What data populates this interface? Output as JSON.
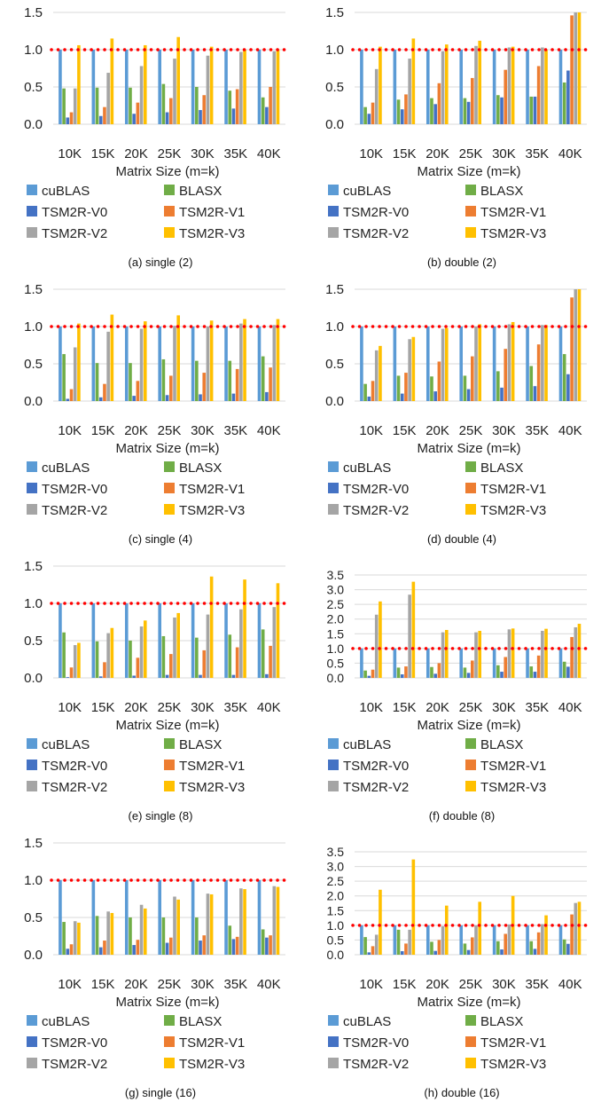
{
  "legend": [
    "cuBLAS",
    "BLASX",
    "TSM2R-V0",
    "TSM2R-V1",
    "TSM2R-V2",
    "TSM2R-V3"
  ],
  "colors": {
    "cuBLAS": "#5B9BD5",
    "BLASX": "#70AD47",
    "TSM2R-V0": "#4472C4",
    "TSM2R-V1": "#ED7D31",
    "TSM2R-V2": "#A5A5A5",
    "TSM2R-V3": "#FFC000",
    "reference_line": "#FF0000"
  },
  "chart_data": [
    {
      "type": "bar",
      "caption": "(a) single (2)",
      "xlabel": "Matrix Size (m=k)",
      "categories": [
        "10K",
        "15K",
        "20K",
        "25K",
        "30K",
        "35K",
        "40K"
      ],
      "ylim": [
        0,
        1.5
      ],
      "yticks": [
        "0.0",
        "0.5",
        "1.0",
        "1.5"
      ],
      "reference_line": 1.0,
      "series": [
        {
          "name": "cuBLAS",
          "values": [
            1,
            1,
            1,
            1,
            1,
            1,
            1
          ]
        },
        {
          "name": "BLASX",
          "values": [
            0.48,
            0.49,
            0.49,
            0.54,
            0.5,
            0.45,
            0.36
          ]
        },
        {
          "name": "TSM2R-V0",
          "values": [
            0.09,
            0.11,
            0.14,
            0.16,
            0.19,
            0.21,
            0.23
          ]
        },
        {
          "name": "TSM2R-V1",
          "values": [
            0.16,
            0.23,
            0.29,
            0.35,
            0.39,
            0.47,
            0.5
          ]
        },
        {
          "name": "TSM2R-V2",
          "values": [
            0.48,
            0.69,
            0.78,
            0.88,
            0.92,
            0.97,
            0.98
          ]
        },
        {
          "name": "TSM2R-V3",
          "values": [
            1.06,
            1.15,
            1.06,
            1.17,
            1.04,
            1.0,
            1.0
          ]
        }
      ]
    },
    {
      "type": "bar",
      "caption": "(b) double (2)",
      "xlabel": "Matrix Size (m=k)",
      "categories": [
        "10K",
        "15K",
        "20K",
        "25K",
        "30K",
        "35K",
        "40K"
      ],
      "ylim": [
        0,
        1.5
      ],
      "yticks": [
        "0.0",
        "0.5",
        "1.0",
        "1.5"
      ],
      "reference_line": 1.0,
      "series": [
        {
          "name": "cuBLAS",
          "values": [
            1,
            1,
            1,
            1,
            1,
            1,
            1
          ]
        },
        {
          "name": "BLASX",
          "values": [
            0.23,
            0.33,
            0.35,
            0.35,
            0.39,
            0.37,
            0.56
          ]
        },
        {
          "name": "TSM2R-V0",
          "values": [
            0.14,
            0.2,
            0.27,
            0.3,
            0.36,
            0.37,
            0.72
          ]
        },
        {
          "name": "TSM2R-V1",
          "values": [
            0.29,
            0.4,
            0.55,
            0.62,
            0.73,
            0.78,
            1.46
          ]
        },
        {
          "name": "TSM2R-V2",
          "values": [
            0.74,
            0.88,
            0.98,
            1.05,
            1.03,
            1.03,
            1.5
          ]
        },
        {
          "name": "TSM2R-V3",
          "values": [
            1.04,
            1.15,
            1.07,
            1.12,
            1.04,
            1.0,
            1.5
          ]
        }
      ]
    },
    {
      "type": "bar",
      "caption": "(c) single (4)",
      "xlabel": "Matrix Size (m=k)",
      "categories": [
        "10K",
        "15K",
        "20K",
        "25K",
        "30K",
        "35K",
        "40K"
      ],
      "ylim": [
        0,
        1.5
      ],
      "yticks": [
        "0.0",
        "0.5",
        "1.0",
        "1.5"
      ],
      "reference_line": 1.0,
      "series": [
        {
          "name": "cuBLAS",
          "values": [
            1,
            1,
            1,
            1,
            1,
            1,
            1
          ]
        },
        {
          "name": "BLASX",
          "values": [
            0.63,
            0.51,
            0.51,
            0.56,
            0.54,
            0.54,
            0.6
          ]
        },
        {
          "name": "TSM2R-V0",
          "values": [
            0.03,
            0.05,
            0.07,
            0.08,
            0.09,
            0.1,
            0.12
          ]
        },
        {
          "name": "TSM2R-V1",
          "values": [
            0.16,
            0.23,
            0.27,
            0.34,
            0.38,
            0.43,
            0.45
          ]
        },
        {
          "name": "TSM2R-V2",
          "values": [
            0.72,
            0.93,
            0.97,
            1.01,
            1.0,
            1.04,
            1.02
          ]
        },
        {
          "name": "TSM2R-V3",
          "values": [
            1.04,
            1.16,
            1.07,
            1.15,
            1.08,
            1.1,
            1.1
          ]
        }
      ]
    },
    {
      "type": "bar",
      "caption": "(d) double (4)",
      "xlabel": "Matrix Size (m=k)",
      "categories": [
        "10K",
        "15K",
        "20K",
        "25K",
        "30K",
        "35K",
        "40K"
      ],
      "ylim": [
        0,
        1.5
      ],
      "yticks": [
        "0.0",
        "0.5",
        "1.0",
        "1.5"
      ],
      "reference_line": 1.0,
      "series": [
        {
          "name": "cuBLAS",
          "values": [
            1,
            1,
            1,
            1,
            1,
            1,
            1
          ]
        },
        {
          "name": "BLASX",
          "values": [
            0.23,
            0.34,
            0.33,
            0.34,
            0.4,
            0.47,
            0.63
          ]
        },
        {
          "name": "TSM2R-V0",
          "values": [
            0.06,
            0.1,
            0.13,
            0.16,
            0.18,
            0.2,
            0.36
          ]
        },
        {
          "name": "TSM2R-V1",
          "values": [
            0.27,
            0.38,
            0.53,
            0.6,
            0.7,
            0.76,
            1.39
          ]
        },
        {
          "name": "TSM2R-V2",
          "values": [
            0.68,
            0.83,
            0.97,
            1.0,
            1.03,
            1.02,
            1.5
          ]
        },
        {
          "name": "TSM2R-V3",
          "values": [
            0.74,
            0.86,
            0.98,
            1.03,
            1.06,
            1.02,
            1.5
          ]
        }
      ]
    },
    {
      "type": "bar",
      "caption": "(e) single (8)",
      "xlabel": "Matrix Size (m=k)",
      "categories": [
        "10K",
        "15K",
        "20K",
        "25K",
        "30K",
        "35K",
        "40K"
      ],
      "ylim": [
        0,
        1.5
      ],
      "yticks": [
        "0.0",
        "0.5",
        "1.0",
        "1.5"
      ],
      "reference_line": 1.0,
      "series": [
        {
          "name": "cuBLAS",
          "values": [
            1,
            1,
            1,
            1,
            1,
            1,
            1
          ]
        },
        {
          "name": "BLASX",
          "values": [
            0.61,
            0.49,
            0.5,
            0.56,
            0.54,
            0.58,
            0.65
          ]
        },
        {
          "name": "TSM2R-V0",
          "values": [
            0.01,
            0.02,
            0.03,
            0.04,
            0.04,
            0.04,
            0.05
          ]
        },
        {
          "name": "TSM2R-V1",
          "values": [
            0.14,
            0.21,
            0.27,
            0.32,
            0.37,
            0.41,
            0.43
          ]
        },
        {
          "name": "TSM2R-V2",
          "values": [
            0.44,
            0.6,
            0.69,
            0.81,
            0.85,
            0.92,
            0.95
          ]
        },
        {
          "name": "TSM2R-V3",
          "values": [
            0.47,
            0.67,
            0.77,
            0.87,
            1.36,
            1.32,
            1.27
          ]
        }
      ]
    },
    {
      "type": "bar",
      "caption": "(f) double (8)",
      "xlabel": "Matrix Size (m=k)",
      "categories": [
        "10K",
        "15K",
        "20K",
        "25K",
        "30K",
        "35K",
        "40K"
      ],
      "ylim": [
        0,
        3.5
      ],
      "yticks": [
        "0.0",
        "0.5",
        "1.0",
        "1.5",
        "2.0",
        "2.5",
        "3.0",
        "3.5"
      ],
      "reference_line": 1.0,
      "series": [
        {
          "name": "cuBLAS",
          "values": [
            1,
            1,
            1,
            1,
            1,
            1,
            1
          ]
        },
        {
          "name": "BLASX",
          "values": [
            0.25,
            0.35,
            0.37,
            0.35,
            0.43,
            0.39,
            0.55
          ]
        },
        {
          "name": "TSM2R-V0",
          "values": [
            0.07,
            0.12,
            0.14,
            0.17,
            0.21,
            0.21,
            0.38
          ]
        },
        {
          "name": "TSM2R-V1",
          "values": [
            0.28,
            0.39,
            0.5,
            0.59,
            0.71,
            0.76,
            1.39
          ]
        },
        {
          "name": "TSM2R-V2",
          "values": [
            2.15,
            2.83,
            1.55,
            1.55,
            1.65,
            1.6,
            1.72
          ]
        },
        {
          "name": "TSM2R-V3",
          "values": [
            2.6,
            3.27,
            1.63,
            1.6,
            1.68,
            1.67,
            1.84
          ]
        }
      ]
    },
    {
      "type": "bar",
      "caption": "(g) single (16)",
      "xlabel": "Matrix Size (m=k)",
      "categories": [
        "10K",
        "15K",
        "20K",
        "25K",
        "30K",
        "35K",
        "40K"
      ],
      "ylim": [
        0,
        1.5
      ],
      "yticks": [
        "0.0",
        "0.5",
        "1.0",
        "1.5"
      ],
      "reference_line": 1.0,
      "series": [
        {
          "name": "cuBLAS",
          "values": [
            1,
            1,
            1,
            1,
            1,
            1,
            1
          ]
        },
        {
          "name": "BLASX",
          "values": [
            0.44,
            0.52,
            0.5,
            0.5,
            0.5,
            0.39,
            0.34
          ]
        },
        {
          "name": "TSM2R-V0",
          "values": [
            0.08,
            0.1,
            0.13,
            0.16,
            0.19,
            0.21,
            0.23
          ]
        },
        {
          "name": "TSM2R-V1",
          "values": [
            0.14,
            0.19,
            0.2,
            0.23,
            0.26,
            0.24,
            0.26
          ]
        },
        {
          "name": "TSM2R-V2",
          "values": [
            0.45,
            0.58,
            0.67,
            0.78,
            0.82,
            0.89,
            0.92
          ]
        },
        {
          "name": "TSM2R-V3",
          "values": [
            0.43,
            0.56,
            0.62,
            0.74,
            0.81,
            0.88,
            0.91
          ]
        }
      ]
    },
    {
      "type": "bar",
      "caption": "(h) double (16)",
      "xlabel": "Matrix Size (m=k)",
      "categories": [
        "10K",
        "15K",
        "20K",
        "25K",
        "30K",
        "35K",
        "40K"
      ],
      "ylim": [
        0,
        3.5
      ],
      "yticks": [
        "0.0",
        "0.5",
        "1.0",
        "1.5",
        "2.0",
        "2.5",
        "3.0",
        "3.5"
      ],
      "reference_line": 1.0,
      "series": [
        {
          "name": "cuBLAS",
          "values": [
            1,
            1,
            1,
            1,
            1,
            1,
            1
          ]
        },
        {
          "name": "BLASX",
          "values": [
            0.6,
            0.85,
            0.44,
            0.38,
            0.46,
            0.46,
            0.52
          ]
        },
        {
          "name": "TSM2R-V0",
          "values": [
            0.08,
            0.12,
            0.13,
            0.16,
            0.18,
            0.2,
            0.37
          ]
        },
        {
          "name": "TSM2R-V1",
          "values": [
            0.29,
            0.38,
            0.5,
            0.59,
            0.71,
            0.76,
            1.37
          ]
        },
        {
          "name": "TSM2R-V2",
          "values": [
            0.68,
            0.85,
            0.97,
            1.0,
            1.03,
            1.04,
            1.76
          ]
        },
        {
          "name": "TSM2R-V3",
          "values": [
            2.21,
            3.24,
            1.67,
            1.8,
            2.0,
            1.34,
            1.8
          ]
        }
      ]
    }
  ]
}
